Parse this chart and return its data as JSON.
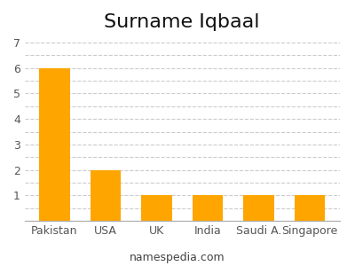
{
  "title": "Surname Iqbaal",
  "categories": [
    "Pakistan",
    "USA",
    "UK",
    "India",
    "Saudi A.",
    "Singapore"
  ],
  "values": [
    6,
    2,
    1,
    1,
    1,
    1
  ],
  "bar_color": "#FFA500",
  "ylim": [
    0,
    7.2
  ],
  "yticks_major": [
    0,
    1,
    2,
    3,
    4,
    5,
    6,
    7
  ],
  "yticks_minor": [
    0.5,
    1.5,
    2.5,
    3.5,
    4.5,
    5.5,
    6.5
  ],
  "background_color": "#ffffff",
  "title_fontsize": 16,
  "tick_fontsize": 9,
  "xlabel_fontsize": 9,
  "footer_text": "namespedia.com",
  "footer_fontsize": 9,
  "bar_color_orange": "#FFA500"
}
